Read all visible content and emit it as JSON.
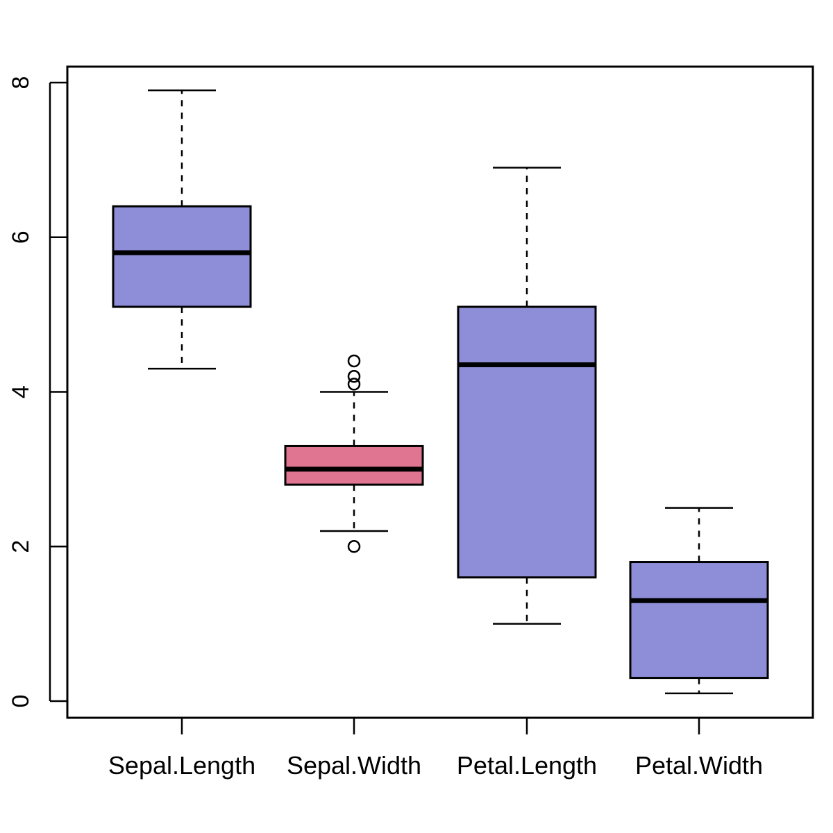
{
  "chart_data": {
    "type": "boxplot",
    "title": "",
    "xlabel": "",
    "ylabel": "",
    "ylim": [
      0,
      8
    ],
    "yticks": [
      "0",
      "2",
      "4",
      "6",
      "8"
    ],
    "grid": false,
    "categories": [
      "Sepal.Length",
      "Sepal.Width",
      "Petal.Length",
      "Petal.Width"
    ],
    "boxes": [
      {
        "category": "Sepal.Length",
        "whisker_low": 4.3,
        "q1": 5.1,
        "median": 5.8,
        "q3": 6.4,
        "whisker_high": 7.9,
        "outliers": [],
        "color": "#8e8ed8"
      },
      {
        "category": "Sepal.Width",
        "whisker_low": 2.2,
        "q1": 2.8,
        "median": 3.0,
        "q3": 3.3,
        "whisker_high": 4.0,
        "outliers": [
          2.0,
          4.1,
          4.2,
          4.4
        ],
        "color": "#e07591"
      },
      {
        "category": "Petal.Length",
        "whisker_low": 1.0,
        "q1": 1.6,
        "median": 4.35,
        "q3": 5.1,
        "whisker_high": 6.9,
        "outliers": [],
        "color": "#8e8ed8"
      },
      {
        "category": "Petal.Width",
        "whisker_low": 0.1,
        "q1": 0.3,
        "median": 1.3,
        "q3": 1.8,
        "whisker_high": 2.5,
        "outliers": [],
        "color": "#8e8ed8"
      }
    ]
  }
}
